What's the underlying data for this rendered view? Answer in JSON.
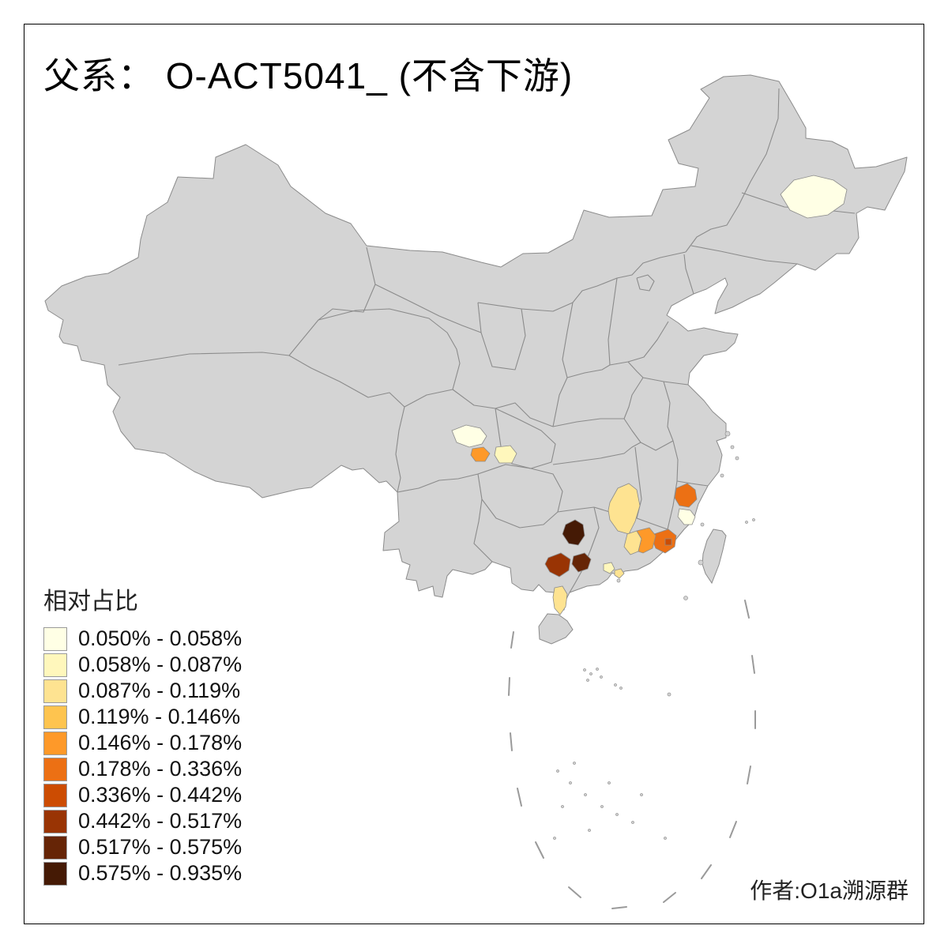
{
  "title": "父系： O-ACT5041_ (不含下游)",
  "attribution": "作者:O1a溯源群",
  "legend": {
    "title": "相对占比",
    "items": [
      {
        "label": "0.050% - 0.058%",
        "color": "#FFFFE5"
      },
      {
        "label": "0.058% - 0.087%",
        "color": "#FFF7BC"
      },
      {
        "label": "0.087% - 0.119%",
        "color": "#FEE391"
      },
      {
        "label": "0.119% - 0.146%",
        "color": "#FEC44F"
      },
      {
        "label": "0.146% - 0.178%",
        "color": "#FE9929"
      },
      {
        "label": "0.178% - 0.336%",
        "color": "#EC7014"
      },
      {
        "label": "0.336% - 0.442%",
        "color": "#CC4C02"
      },
      {
        "label": "0.442% - 0.517%",
        "color": "#993404"
      },
      {
        "label": "0.517% - 0.575%",
        "color": "#662506"
      },
      {
        "label": "0.575% - 0.935%",
        "color": "#451A05"
      }
    ]
  },
  "map": {
    "land_color": "#d4d4d4",
    "border_color": "#8b8b8b",
    "island_outline_color": "#9a9a9a",
    "dash_line_color": "#9a9a9a",
    "background_color": "#ffffff",
    "frame_color": "#000000"
  }
}
